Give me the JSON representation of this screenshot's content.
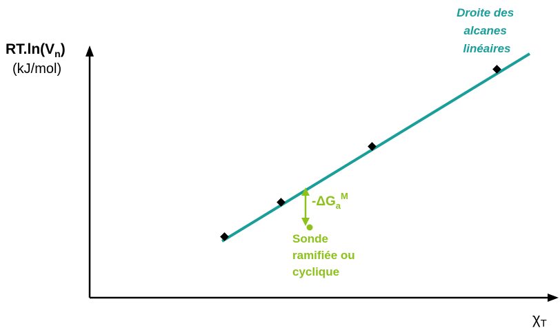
{
  "y_axis": {
    "label_main": "RT.ln(V",
    "label_sub": "n",
    "label_close": ")",
    "unit": "(kJ/mol)"
  },
  "x_axis": {
    "label_main": "χ",
    "label_sub": "T"
  },
  "line": {
    "label_lines": [
      "Droite des",
      "alcanes",
      "linéaires"
    ],
    "color": "#1a9e9a"
  },
  "delta": {
    "label_main": "-ΔG",
    "label_sub": "a",
    "label_sup": "M",
    "color": "#8cc21a"
  },
  "probe": {
    "label_lines": [
      "Sonde",
      "ramifiée ou",
      "cyclique"
    ],
    "color": "#8cc21a"
  },
  "axis_color": "#000000",
  "point_color": "#000000"
}
